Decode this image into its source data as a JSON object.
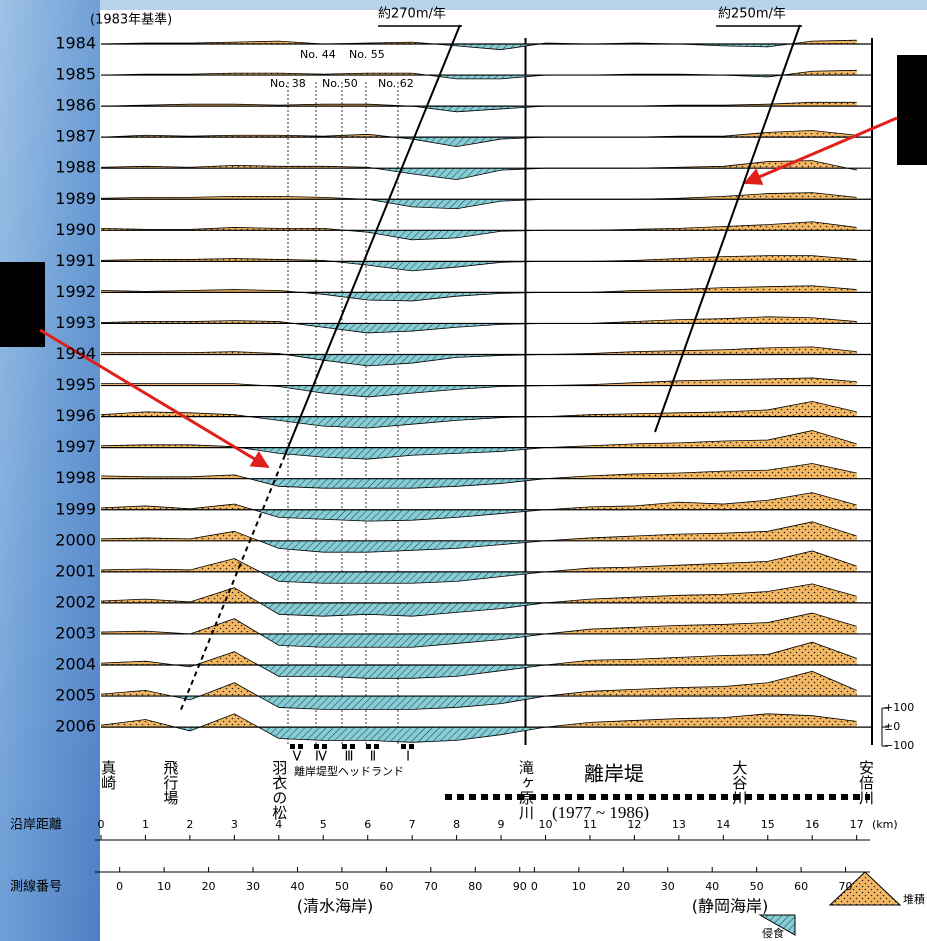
{
  "chart_data": {
    "type": "line",
    "title": "(1983年基準)",
    "x": [
      0,
      1,
      2,
      3,
      4,
      5,
      6,
      7,
      8,
      9,
      10,
      11,
      12,
      13,
      14,
      15,
      16,
      17
    ],
    "xticks": [
      0,
      1,
      2,
      3,
      4,
      5,
      6,
      7,
      8,
      9,
      10,
      11,
      12,
      13,
      14,
      15,
      16,
      17
    ],
    "xlim": [
      0,
      17.3
    ],
    "xlabel": "沿岸距離",
    "xunit": "(km)",
    "ylim": [
      -100,
      100
    ],
    "yticks": [
      {
        "value": 100,
        "label": "+100"
      },
      {
        "value": 0,
        "label": "±0"
      },
      {
        "value": -100,
        "label": "−100"
      }
    ],
    "colors": {
      "positive": "#f4b862",
      "negative": "#86cdd6"
    },
    "series": [
      {
        "name": "1984",
        "values": [
          0,
          5,
          5,
          10,
          15,
          0,
          5,
          10,
          -10,
          -30,
          5,
          0,
          5,
          0,
          -10,
          -15,
          15,
          20
        ]
      },
      {
        "name": "1985",
        "values": [
          0,
          5,
          5,
          10,
          10,
          5,
          10,
          10,
          -20,
          -20,
          0,
          0,
          5,
          5,
          0,
          -10,
          20,
          25
        ]
      },
      {
        "name": "1986",
        "values": [
          0,
          5,
          10,
          10,
          5,
          10,
          10,
          0,
          -30,
          -15,
          0,
          0,
          0,
          5,
          5,
          10,
          20,
          20
        ]
      },
      {
        "name": "1987",
        "values": [
          0,
          10,
          5,
          10,
          10,
          5,
          15,
          -10,
          -50,
          -10,
          0,
          0,
          0,
          5,
          5,
          25,
          35,
          10
        ]
      },
      {
        "name": "1988",
        "values": [
          5,
          10,
          5,
          15,
          10,
          10,
          5,
          -30,
          -60,
          -10,
          0,
          0,
          0,
          5,
          10,
          35,
          40,
          -10
        ]
      },
      {
        "name": "1989",
        "values": [
          5,
          10,
          10,
          15,
          15,
          10,
          0,
          -40,
          -50,
          -10,
          0,
          0,
          0,
          5,
          15,
          30,
          35,
          10
        ]
      },
      {
        "name": "1990",
        "values": [
          10,
          5,
          5,
          15,
          10,
          10,
          -10,
          -50,
          -40,
          -5,
          0,
          0,
          5,
          10,
          20,
          30,
          45,
          15
        ]
      },
      {
        "name": "1991",
        "values": [
          5,
          10,
          10,
          15,
          10,
          5,
          -20,
          -50,
          -30,
          -5,
          0,
          0,
          5,
          15,
          25,
          30,
          30,
          10
        ]
      },
      {
        "name": "1992",
        "values": [
          10,
          5,
          10,
          15,
          10,
          -10,
          -40,
          -45,
          -20,
          -5,
          0,
          0,
          10,
          15,
          25,
          30,
          35,
          15
        ]
      },
      {
        "name": "1993",
        "values": [
          5,
          10,
          10,
          15,
          10,
          -20,
          -50,
          -40,
          -20,
          -5,
          0,
          0,
          10,
          20,
          25,
          35,
          30,
          10
        ]
      },
      {
        "name": "1994",
        "values": [
          10,
          10,
          10,
          15,
          5,
          -30,
          -60,
          -45,
          -15,
          -5,
          0,
          5,
          15,
          20,
          25,
          35,
          40,
          15
        ]
      },
      {
        "name": "1995",
        "values": [
          10,
          10,
          10,
          10,
          -5,
          -40,
          -60,
          -40,
          -20,
          -5,
          0,
          5,
          15,
          25,
          30,
          35,
          40,
          20
        ]
      },
      {
        "name": "1996",
        "values": [
          10,
          25,
          20,
          10,
          -20,
          -50,
          -60,
          -40,
          -20,
          -5,
          0,
          10,
          15,
          20,
          25,
          35,
          80,
          25
        ]
      },
      {
        "name": "1997",
        "values": [
          10,
          15,
          15,
          5,
          -30,
          -50,
          -60,
          -40,
          -30,
          -20,
          0,
          10,
          20,
          25,
          35,
          40,
          90,
          20
        ]
      },
      {
        "name": "1998",
        "values": [
          15,
          10,
          10,
          20,
          -40,
          -50,
          -50,
          -50,
          -40,
          -25,
          0,
          15,
          25,
          30,
          40,
          45,
          80,
          30
        ]
      },
      {
        "name": "1999",
        "values": [
          10,
          20,
          5,
          30,
          -40,
          -50,
          -60,
          -55,
          -40,
          -20,
          0,
          15,
          20,
          40,
          30,
          50,
          90,
          25
        ]
      },
      {
        "name": "2000",
        "values": [
          10,
          15,
          10,
          50,
          -40,
          -60,
          -60,
          -50,
          -40,
          -20,
          0,
          15,
          25,
          35,
          40,
          50,
          100,
          25
        ]
      },
      {
        "name": "2001",
        "values": [
          10,
          15,
          10,
          70,
          -50,
          -60,
          -60,
          -60,
          -50,
          -25,
          0,
          20,
          25,
          35,
          45,
          55,
          110,
          30
        ]
      },
      {
        "name": "2002",
        "values": [
          10,
          20,
          5,
          80,
          -60,
          -70,
          -60,
          -70,
          -50,
          -30,
          0,
          20,
          30,
          40,
          45,
          60,
          100,
          35
        ]
      },
      {
        "name": "2003",
        "values": [
          10,
          15,
          0,
          80,
          -60,
          -70,
          -70,
          -70,
          -50,
          -30,
          0,
          25,
          35,
          45,
          50,
          60,
          110,
          40
        ]
      },
      {
        "name": "2004",
        "values": [
          10,
          20,
          -10,
          70,
          -60,
          -60,
          -70,
          -70,
          -60,
          -30,
          0,
          25,
          30,
          40,
          50,
          55,
          120,
          35
        ]
      },
      {
        "name": "2005",
        "values": [
          10,
          30,
          -20,
          70,
          -60,
          -70,
          -70,
          -70,
          -60,
          -40,
          0,
          25,
          35,
          45,
          50,
          70,
          130,
          30
        ]
      },
      {
        "name": "2006",
        "values": [
          10,
          40,
          -20,
          70,
          -60,
          -70,
          -70,
          -80,
          -70,
          -40,
          0,
          25,
          35,
          45,
          50,
          70,
          60,
          30
        ]
      }
    ],
    "annotations": [
      "約270m/年",
      "約250m/年"
    ]
  },
  "figure": {
    "places": [
      "真崎",
      "飛行場",
      "羽衣の松",
      "滝ヶ原川",
      "大谷川",
      "安倍川"
    ],
    "survey_lines": [
      "No. 44",
      "No. 55",
      "No. 38",
      "No. 50",
      "No. 62"
    ],
    "headlands": [
      "Ⅴ",
      "Ⅳ",
      "Ⅲ",
      "Ⅱ",
      "Ⅰ"
    ],
    "headland_label": "離岸堤型ヘッドランド",
    "breakwater": "離岸堤",
    "breakwater_period": "(1977 ~ 1986)",
    "line_number_label": "測線番号",
    "shimizu_ticks": [
      0,
      10,
      20,
      30,
      40,
      50,
      60,
      70,
      80,
      90
    ],
    "shizuoka_ticks": [
      0,
      10,
      20,
      30,
      40,
      50,
      60,
      70
    ],
    "shimizu_name": "(清水海岸)",
    "shizuoka_name": "(静岡海岸)",
    "legend_deposit": "堆積",
    "legend_erosion": "侵食"
  }
}
